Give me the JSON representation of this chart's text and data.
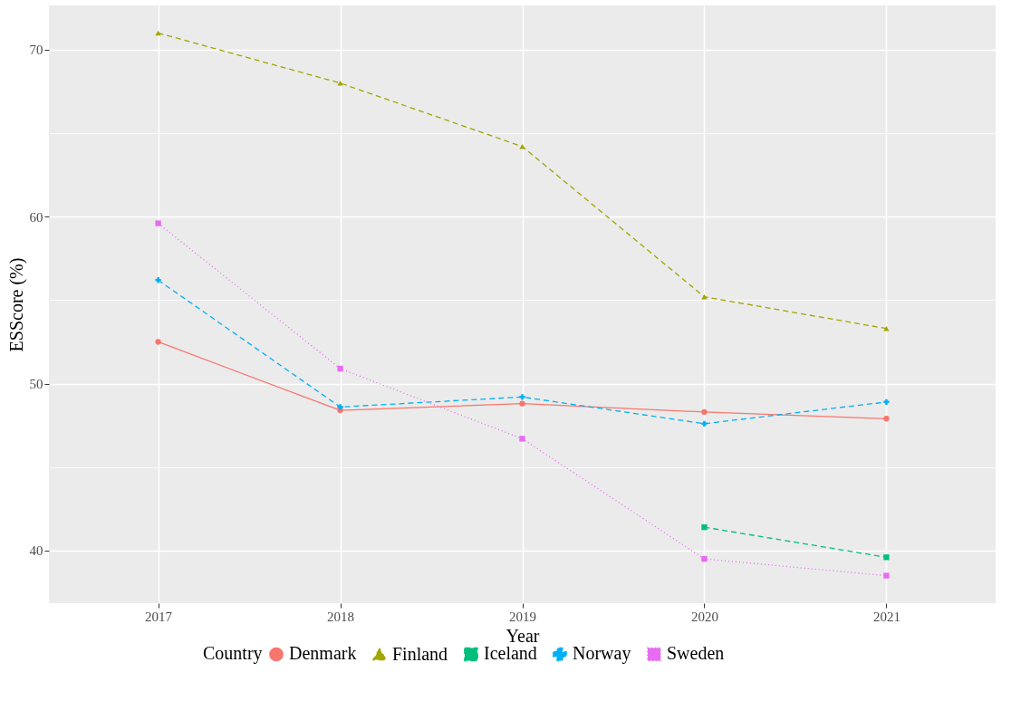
{
  "chart_data": {
    "type": "line",
    "xlabel": "Year",
    "ylabel": "ESScore (%)",
    "legend_title": "Country",
    "x": [
      2017,
      2018,
      2019,
      2020,
      2021
    ],
    "series": [
      {
        "name": "Denmark",
        "color": "#f8766d",
        "marker": "circle",
        "line_style": "solid",
        "values": [
          52.5,
          48.4,
          48.8,
          48.3,
          47.9
        ]
      },
      {
        "name": "Finland",
        "color": "#a3a500",
        "marker": "triangle",
        "line_style": "dashed",
        "values": [
          71.0,
          68.0,
          64.2,
          55.2,
          53.3
        ]
      },
      {
        "name": "Iceland",
        "color": "#00bf7d",
        "marker": "square",
        "line_style": "dashed",
        "values": [
          null,
          null,
          null,
          41.4,
          39.6
        ]
      },
      {
        "name": "Norway",
        "color": "#00b0f6",
        "marker": "cross",
        "line_style": "dashed",
        "values": [
          56.2,
          48.6,
          49.2,
          47.6,
          48.9
        ]
      },
      {
        "name": "Sweden",
        "color": "#e76bf3",
        "marker": "square",
        "line_style": "dotted",
        "values": [
          59.6,
          50.9,
          46.7,
          39.5,
          38.5
        ]
      }
    ],
    "xlim": [
      2016.4,
      2021.6
    ],
    "xticks": [
      2017,
      2018,
      2019,
      2020,
      2021
    ],
    "ylim": [
      36.85,
      72.65
    ],
    "yticks": [
      40,
      {
        "value": 45,
        "label": null
      },
      50,
      {
        "value": 55,
        "label": null
      },
      60,
      {
        "value": 65,
        "label": null
      },
      70
    ],
    "grid": true,
    "legend": "bottom"
  }
}
